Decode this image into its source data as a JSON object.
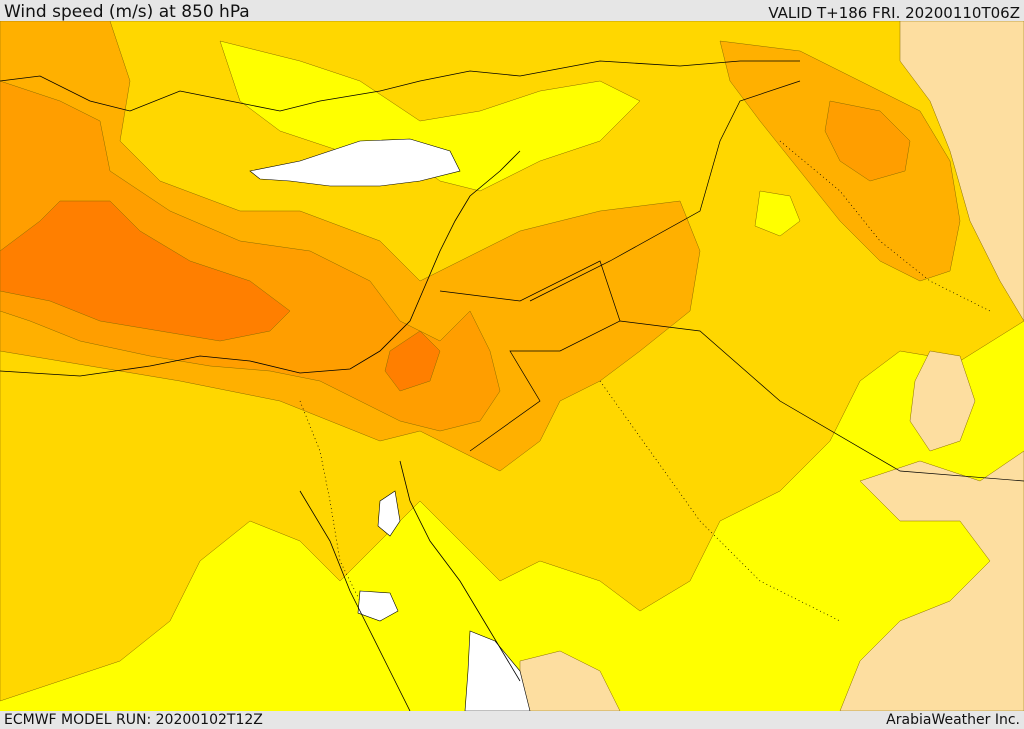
{
  "header": {
    "title": "Wind speed (m/s) at 850 hPa",
    "valid": "VALID T+186 FRI. 20200110T06Z"
  },
  "footer": {
    "model_run": "ECMWF MODEL RUN: 20200102T12Z",
    "credit": "ArabiaWeather Inc."
  },
  "colors": {
    "pale": "#fddea0",
    "yellow": "#ffff00",
    "gold": "#ffd700",
    "orange_light": "#ffb000",
    "orange": "#ff9e00",
    "orange_dark": "#ff7f00",
    "water_white": "#ffffff",
    "coast": "#000000"
  }
}
